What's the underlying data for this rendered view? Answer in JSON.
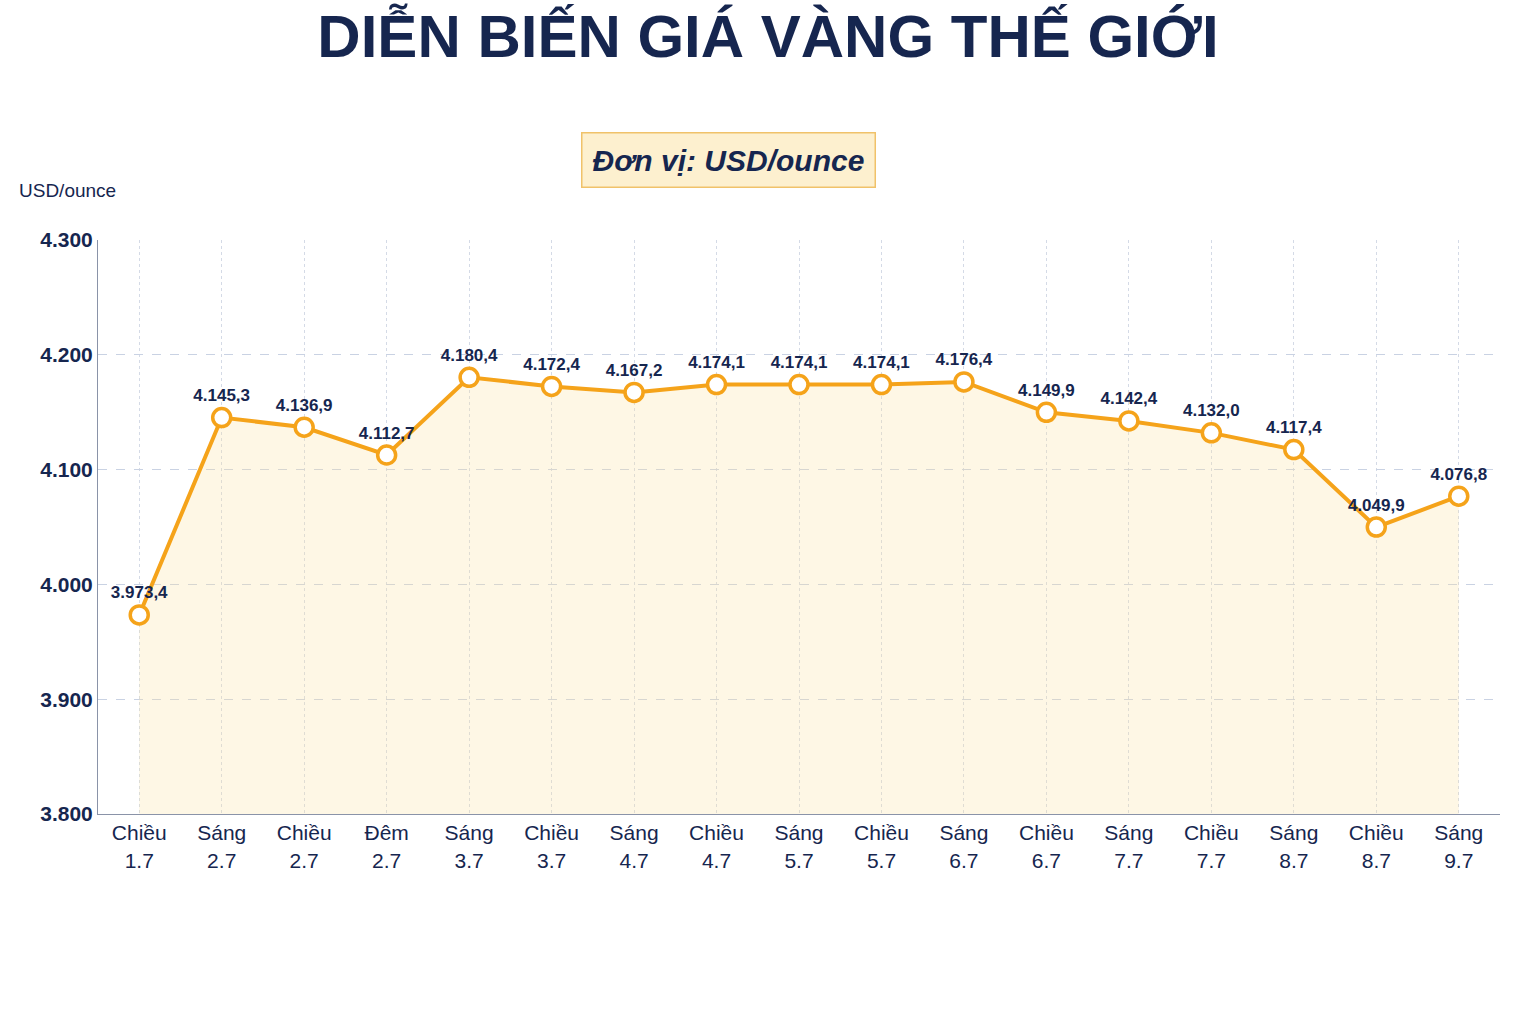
{
  "chart_data": {
    "type": "line",
    "title": "DIỄN BIẾN GIÁ VÀNG THẾ GIỚI",
    "subtitle": "Đơn vị: USD/ounce",
    "ylabel": "USD/ounce",
    "categories": [
      "Chiều 1.7",
      "Sáng 2.7",
      "Chiều 2.7",
      "Đêm 2.7",
      "Sáng 3.7",
      "Chiều 3.7",
      "Sáng 4.7",
      "Chiều 4.7",
      "Sáng 5.7",
      "Chiều 5.7",
      "Sáng 6.7",
      "Chiều 6.7",
      "Sáng 7.7",
      "Chiều 7.7",
      "Sáng 8.7",
      "Chiều 8.7",
      "Sáng 9.7"
    ],
    "values": [
      3973.4,
      4145.3,
      4136.9,
      4112.7,
      4180.4,
      4172.4,
      4167.2,
      4174.1,
      4174.1,
      4174.1,
      4176.4,
      4149.9,
      4142.4,
      4132.0,
      4117.4,
      4049.9,
      4076.8
    ],
    "value_labels": [
      "3.973,4",
      "4.145,3",
      "4.136,9",
      "4.112,7",
      "4.180,4",
      "4.172,4",
      "4.167,2",
      "4.174,1",
      "4.174,1",
      "4.174,1",
      "4.176,4",
      "4.149,9",
      "4.142,4",
      "4.132,0",
      "4.117,4",
      "4.049,9",
      "4.076,8"
    ],
    "ylim": [
      3800,
      4300
    ],
    "yticks": [
      {
        "value": 3800,
        "label": "3.800"
      },
      {
        "value": 3900,
        "label": "3.900"
      },
      {
        "value": 4000,
        "label": "4.000"
      },
      {
        "value": 4100,
        "label": "4.100"
      },
      {
        "value": 4200,
        "label": "4.200"
      },
      {
        "value": 4300,
        "label": "4.300"
      }
    ],
    "grid": true,
    "data_labels": true,
    "color": "#f5a31a",
    "marker": "circle"
  }
}
